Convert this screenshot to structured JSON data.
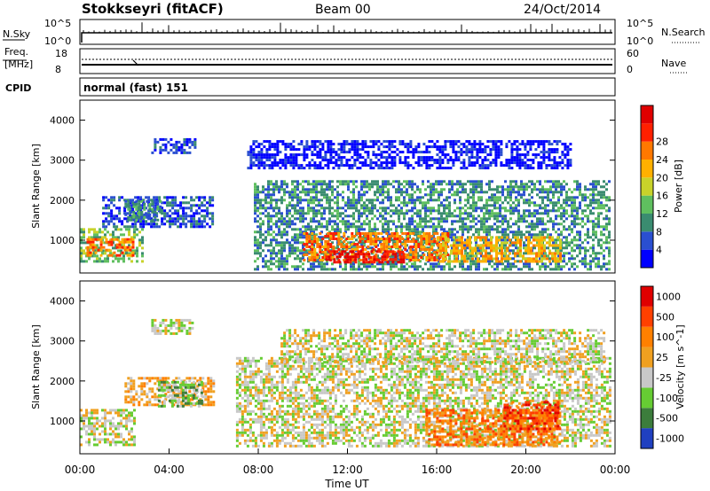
{
  "header": {
    "station": "Stokkseyri (fitACF)",
    "beam": "Beam 00",
    "date": "24/Oct/2014"
  },
  "strip_nsky": {
    "left_label": "N.Sky",
    "right_label": "N.Search",
    "left_ticks": [
      "10^5",
      "10^0"
    ],
    "right_ticks": [
      "10^5",
      "10^0"
    ]
  },
  "strip_freq": {
    "left_label_1": "Freq.",
    "left_label_2": "[MHz]",
    "left_ticks": [
      "18",
      "8"
    ],
    "right_label": "Nave",
    "right_ticks": [
      "60",
      "0"
    ]
  },
  "cpid": {
    "label": "CPID",
    "value": "normal (fast) 151"
  },
  "chart_data": [
    {
      "type": "heatmap",
      "ylabel": "Slant Range [km]",
      "xlabel": "Time UT",
      "x_ticks": [
        "00:00",
        "04:00",
        "08:00",
        "12:00",
        "16:00",
        "20:00",
        "00:00"
      ],
      "x_range_hours": [
        0,
        24
      ],
      "y_ticks": [
        "1000",
        "2000",
        "3000",
        "4000"
      ],
      "y_range_km": [
        180,
        4500
      ],
      "colorbar": {
        "label": "Power [dB]",
        "ticks": [
          "4",
          "8",
          "12",
          "16",
          "20",
          "24",
          "28"
        ],
        "colors": [
          "#0000ff",
          "#2a4fd0",
          "#3a8c70",
          "#5fbf5f",
          "#c8d22a",
          "#ffb000",
          "#ff7800",
          "#ff2000",
          "#e00000"
        ]
      },
      "regions": [
        {
          "t0": 0.0,
          "t1": 2.8,
          "r0": 500,
          "r1": 1300,
          "level": 3
        },
        {
          "t0": 0.3,
          "t1": 2.4,
          "r0": 650,
          "r1": 1050,
          "level": 6
        },
        {
          "t0": 1.0,
          "t1": 6.0,
          "r0": 1350,
          "r1": 2100,
          "level": 1
        },
        {
          "t0": 2.0,
          "t1": 3.6,
          "r0": 1500,
          "r1": 2000,
          "level": 2
        },
        {
          "t0": 3.2,
          "t1": 5.2,
          "r0": 3200,
          "r1": 3550,
          "level": 1
        },
        {
          "t0": 7.8,
          "t1": 23.8,
          "r0": 300,
          "r1": 2500,
          "level": 2
        },
        {
          "t0": 10.0,
          "t1": 16.5,
          "r0": 500,
          "r1": 1200,
          "level": 6
        },
        {
          "t0": 11.0,
          "t1": 14.5,
          "r0": 450,
          "r1": 750,
          "level": 8
        },
        {
          "t0": 16.0,
          "t1": 21.5,
          "r0": 500,
          "r1": 1100,
          "level": 5
        },
        {
          "t0": 7.5,
          "t1": 22.0,
          "r0": 2800,
          "r1": 3500,
          "level": 0
        }
      ]
    },
    {
      "type": "heatmap",
      "ylabel": "Slant Range [km]",
      "xlabel": "Time UT",
      "x_ticks": [
        "00:00",
        "04:00",
        "08:00",
        "12:00",
        "16:00",
        "20:00",
        "00:00"
      ],
      "x_range_hours": [
        0,
        24
      ],
      "y_ticks": [
        "1000",
        "2000",
        "3000",
        "4000"
      ],
      "y_range_km": [
        180,
        4500
      ],
      "colorbar": {
        "label": "Velocity [m s^-1]",
        "ticks": [
          "1000",
          "500",
          "100",
          "25",
          "-25",
          "-100",
          "-500",
          "-1000"
        ],
        "colors": [
          "#2040c0",
          "#3c7d3c",
          "#66cc33",
          "#c8c8c8",
          "#f0a020",
          "#ff8000",
          "#ff4000",
          "#e00000"
        ]
      },
      "regions": [
        {
          "t0": 0.0,
          "t1": 2.5,
          "r0": 400,
          "r1": 1300,
          "level": 3
        },
        {
          "t0": 2.0,
          "t1": 6.0,
          "r0": 1400,
          "r1": 2100,
          "level": 4
        },
        {
          "t0": 3.5,
          "t1": 5.5,
          "r0": 1400,
          "r1": 2000,
          "level": 2
        },
        {
          "t0": 3.2,
          "t1": 5.0,
          "r0": 3200,
          "r1": 3550,
          "level": 3
        },
        {
          "t0": 7.0,
          "t1": 23.8,
          "r0": 350,
          "r1": 2600,
          "level": 3
        },
        {
          "t0": 15.5,
          "t1": 21.5,
          "r0": 400,
          "r1": 1300,
          "level": 5
        },
        {
          "t0": 19.0,
          "t1": 21.5,
          "r0": 800,
          "r1": 1500,
          "level": 6
        },
        {
          "t0": 9.0,
          "t1": 23.5,
          "r0": 2500,
          "r1": 3300,
          "level": 3
        }
      ]
    }
  ]
}
